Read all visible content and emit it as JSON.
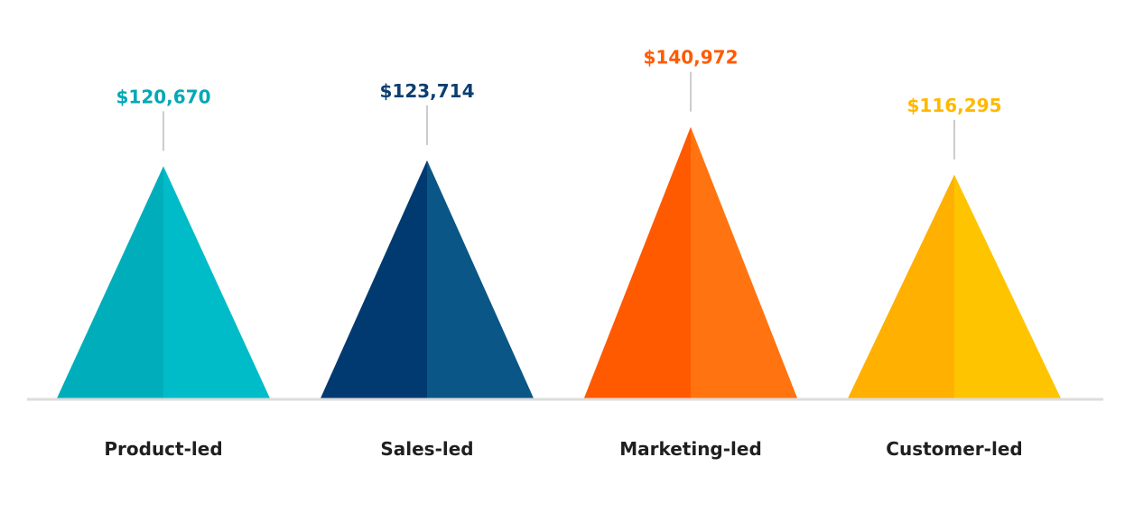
{
  "chart_data": {
    "type": "bar",
    "categories": [
      "Product-led",
      "Sales-led",
      "Marketing-led",
      "Customer-led"
    ],
    "values": [
      120670,
      123714,
      140972,
      116295
    ],
    "value_labels": [
      "$120,670",
      "$123,714",
      "$140,972",
      "$116,295"
    ],
    "colors": [
      {
        "left": "#00AEBB",
        "right": "#00BCC8",
        "label": "#00A9B5"
      },
      {
        "left": "#003A70",
        "right": "#0A5686",
        "label": "#0B3F72"
      },
      {
        "left": "#FF5A00",
        "right": "#FF7410",
        "label": "#FF5A00"
      },
      {
        "left": "#FFB000",
        "right": "#FFC400",
        "label": "#FFB800"
      }
    ],
    "axis_color": "#DDDDDD",
    "leader_color": "#999999",
    "grid": false,
    "legend": "none",
    "ylim": [
      0,
      142000
    ]
  }
}
